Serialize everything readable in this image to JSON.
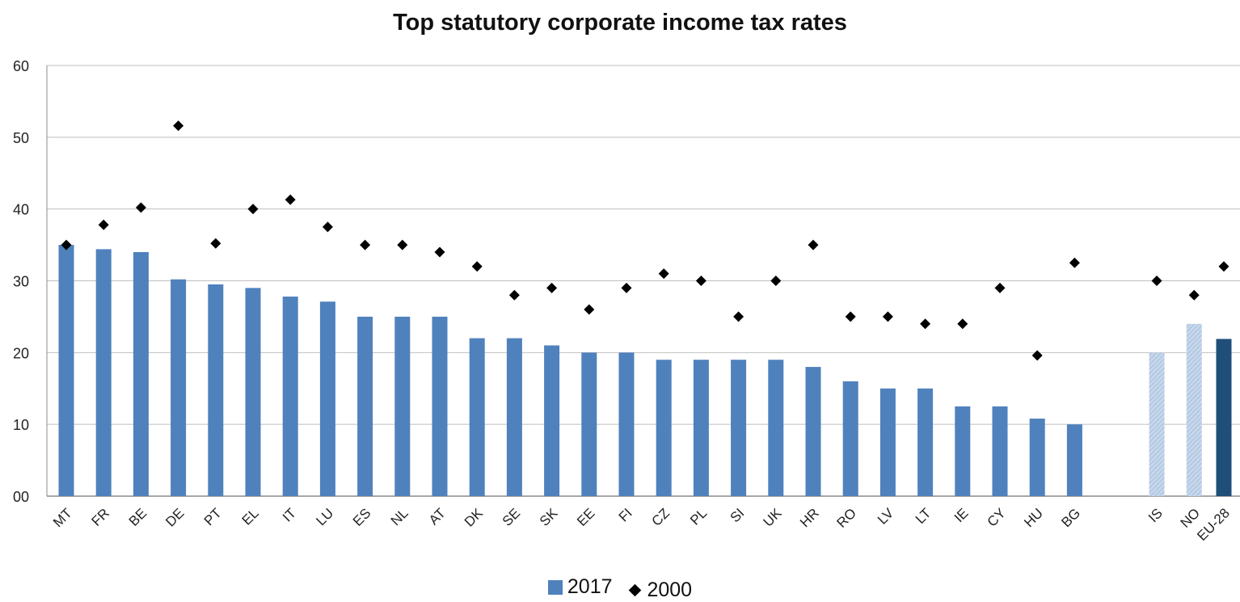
{
  "chart_data": {
    "type": "bar",
    "title": "Top statutory corporate income tax rates",
    "xlabel": "",
    "ylabel": "",
    "ylim": [
      0,
      60
    ],
    "ytick_labels": [
      "00",
      "10",
      "20",
      "30",
      "40",
      "50",
      "60"
    ],
    "ytick_values": [
      0,
      10,
      20,
      30,
      40,
      50,
      60
    ],
    "grid": true,
    "legend_position": "bottom",
    "categories": [
      "MT",
      "FR",
      "BE",
      "DE",
      "PT",
      "EL",
      "IT",
      "LU",
      "ES",
      "NL",
      "AT",
      "DK",
      "SE",
      "SK",
      "EE",
      "FI",
      "CZ",
      "PL",
      "SI",
      "UK",
      "HR",
      "RO",
      "LV",
      "LT",
      "IE",
      "CY",
      "HU",
      "BG",
      "IS",
      "NO",
      "EU-28"
    ],
    "series": [
      {
        "name": "2017",
        "type": "bar",
        "color": "#4f81bd",
        "values": [
          35,
          34.4,
          34,
          30.2,
          29.5,
          29,
          27.8,
          27.1,
          25,
          25,
          25,
          22,
          22,
          21,
          20,
          20,
          19,
          19,
          19,
          19,
          18,
          16,
          15,
          15,
          12.5,
          12.5,
          10.8,
          10,
          20,
          24,
          21.9
        ]
      },
      {
        "name": "2000",
        "type": "scatter",
        "marker": "diamond",
        "color": "#000000",
        "values": [
          35,
          37.8,
          40.2,
          51.6,
          35.2,
          40,
          41.3,
          37.5,
          35,
          35,
          34,
          32,
          28,
          29,
          26,
          29,
          31,
          30,
          25,
          30,
          35,
          25,
          25,
          24,
          24,
          29,
          19.6,
          32.5,
          30,
          28,
          32
        ]
      }
    ],
    "bar_styles": {
      "IS": "light-hatched",
      "NO": "light-hatched",
      "EU-28": "dark"
    },
    "colors": {
      "bar": "#4f81bd",
      "bar_light": "#b9cde4",
      "bar_dark": "#1f4e79",
      "marker": "#000000",
      "grid": "#bfbfbf"
    }
  }
}
